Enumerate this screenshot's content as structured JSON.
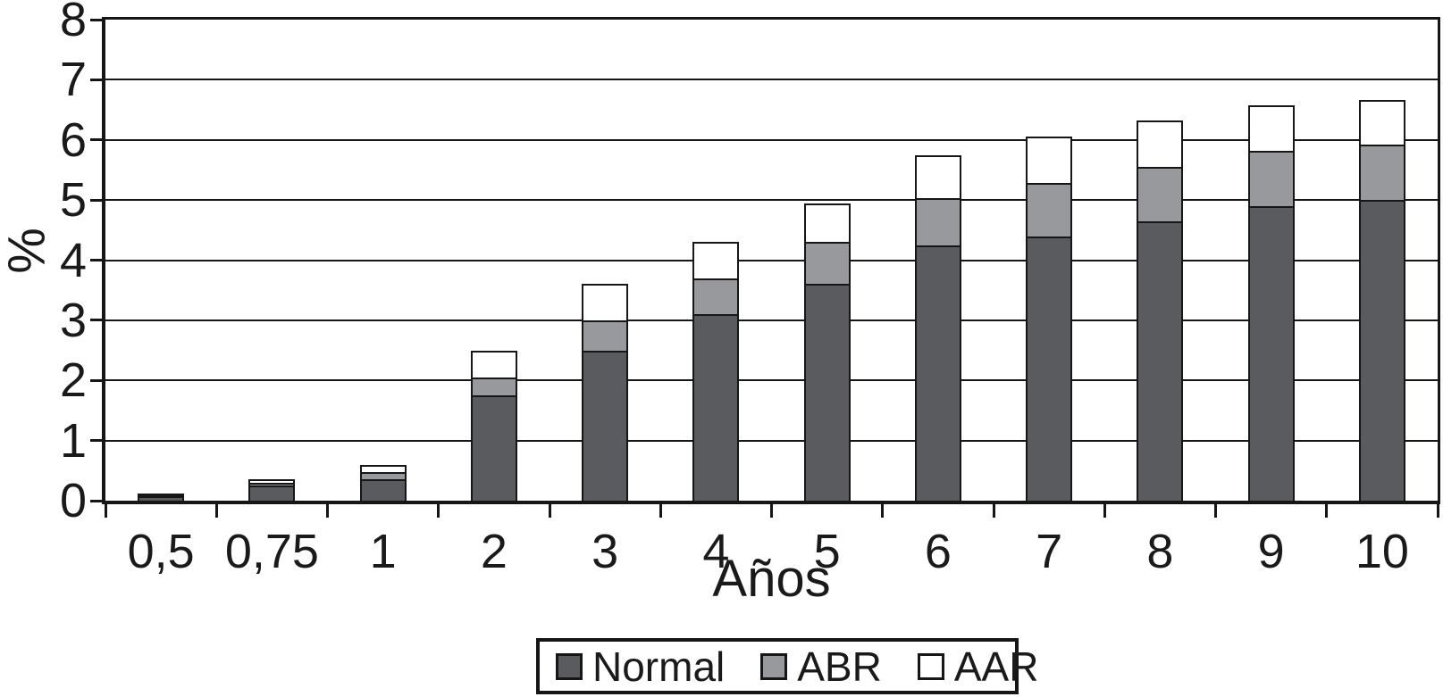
{
  "chart_data": {
    "type": "bar",
    "stacked": true,
    "title": "",
    "xlabel": "Años",
    "ylabel": "%",
    "categories": [
      "0,5",
      "0,75",
      "1",
      "2",
      "3",
      "4",
      "5",
      "6",
      "7",
      "8",
      "9",
      "10"
    ],
    "series": [
      {
        "name": "Normal",
        "color": "#595b5e",
        "values": [
          0.07,
          0.25,
          0.35,
          1.75,
          2.5,
          3.1,
          3.6,
          4.25,
          4.4,
          4.65,
          4.9,
          5.0
        ]
      },
      {
        "name": "ABR",
        "color": "#97999c",
        "values": [
          0.02,
          0.05,
          0.12,
          0.3,
          0.5,
          0.6,
          0.7,
          0.78,
          0.88,
          0.9,
          0.92,
          0.92
        ]
      },
      {
        "name": "AAR",
        "color": "#ffffff",
        "values": [
          0.02,
          0.05,
          0.13,
          0.45,
          0.6,
          0.6,
          0.65,
          0.72,
          0.77,
          0.78,
          0.75,
          0.75
        ]
      }
    ],
    "stack_totals": [
      0.11,
      0.35,
      0.6,
      2.5,
      3.6,
      4.3,
      4.95,
      5.75,
      6.05,
      6.33,
      6.57,
      6.67
    ],
    "ylim": [
      0,
      8
    ],
    "ytick_labels": [
      "0",
      "1",
      "2",
      "3",
      "4",
      "5",
      "6",
      "7",
      "8"
    ],
    "grid": true,
    "legend_position": "bottom",
    "line_color": "#161616"
  },
  "legend": {
    "items": [
      {
        "label": "Normal",
        "color": "#595b5e"
      },
      {
        "label": "ABR",
        "color": "#97999c"
      },
      {
        "label": "AAR",
        "color": "#ffffff"
      }
    ]
  }
}
